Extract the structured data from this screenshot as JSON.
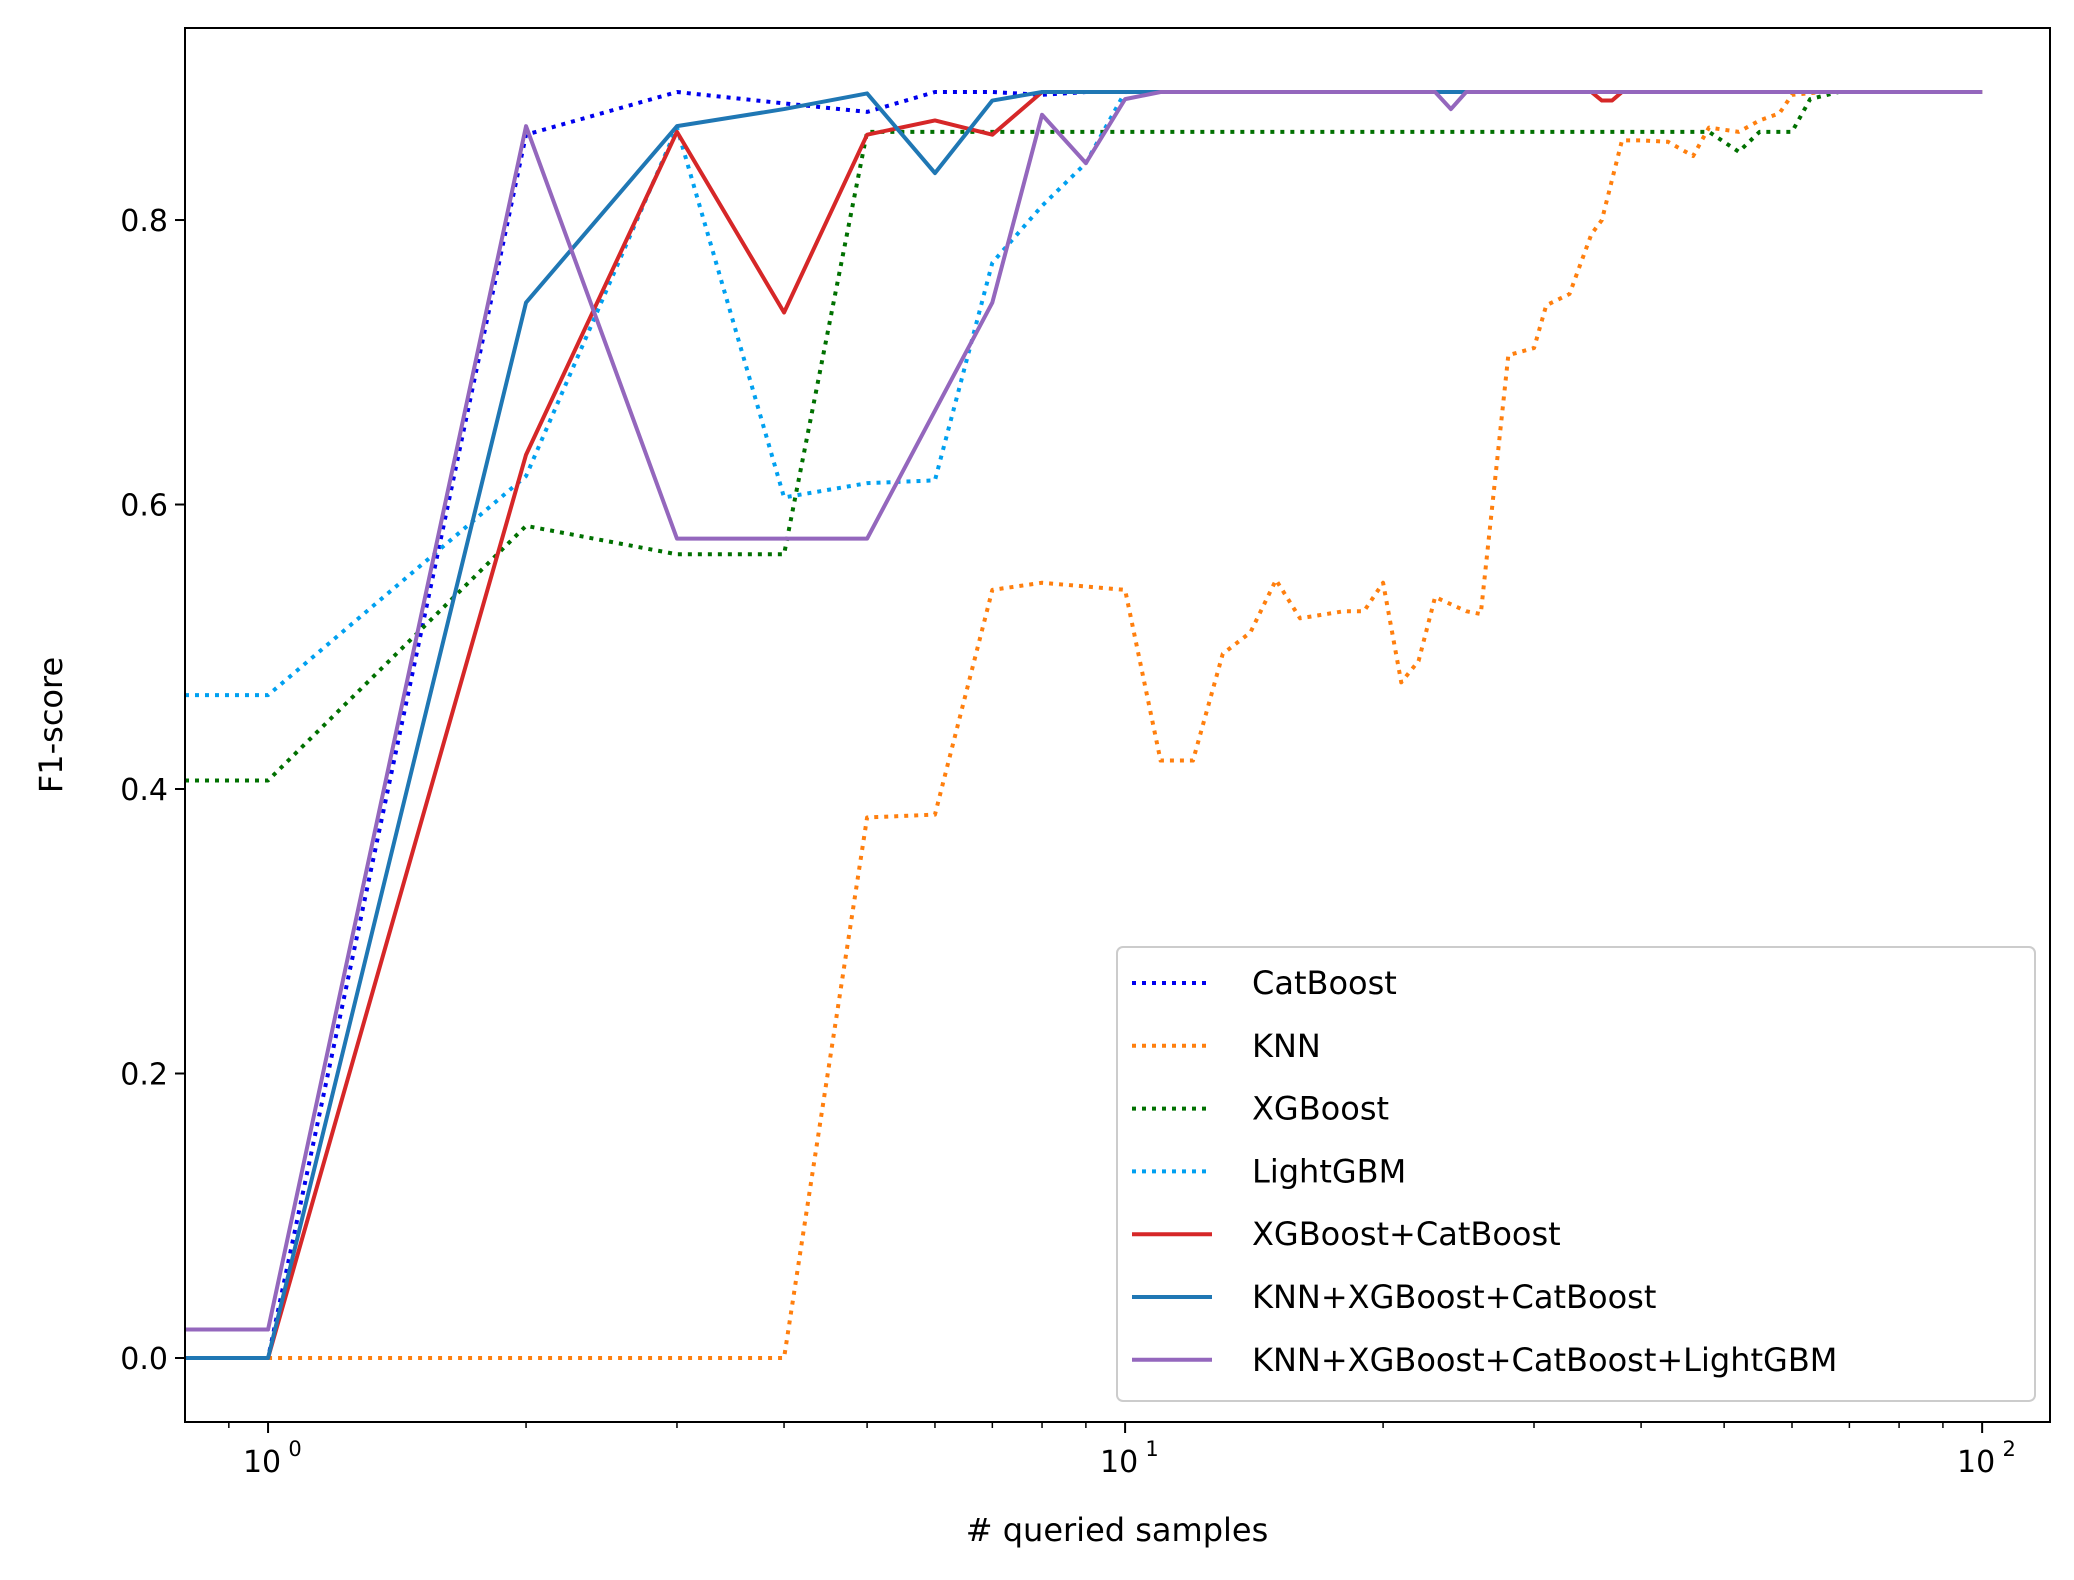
{
  "chart_data": {
    "type": "line",
    "title": "",
    "xlabel": "# queried samples",
    "ylabel": "F1-score",
    "xscale": "log",
    "xlim": [
      0.8,
      120
    ],
    "ylim": [
      -0.045,
      0.935
    ],
    "grid": false,
    "legend_position": "lower-right",
    "x_ticks": [
      {
        "value": 1,
        "base": "10",
        "exp": "0"
      },
      {
        "value": 10,
        "base": "10",
        "exp": "1"
      },
      {
        "value": 100,
        "base": "10",
        "exp": "2"
      }
    ],
    "y_ticks": [
      {
        "value": 0.0,
        "label": "0.0"
      },
      {
        "value": 0.2,
        "label": "0.2"
      },
      {
        "value": 0.4,
        "label": "0.4"
      },
      {
        "value": 0.6,
        "label": "0.6"
      },
      {
        "value": 0.8,
        "label": "0.8"
      }
    ],
    "series": [
      {
        "name": "CatBoost",
        "color": "#0000ee",
        "style": "dotted",
        "points": [
          [
            0.8,
            0.0
          ],
          [
            1,
            0.0
          ],
          [
            2,
            0.86
          ],
          [
            3,
            0.89
          ],
          [
            4,
            0.882
          ],
          [
            5,
            0.876
          ],
          [
            6,
            0.89
          ],
          [
            7,
            0.89
          ],
          [
            8,
            0.888
          ],
          [
            9,
            0.89
          ],
          [
            100,
            0.89
          ]
        ]
      },
      {
        "name": "KNN",
        "color": "#ff7f0e",
        "style": "dotted",
        "points": [
          [
            1,
            0.0
          ],
          [
            4,
            0.0
          ],
          [
            5,
            0.38
          ],
          [
            6,
            0.382
          ],
          [
            7,
            0.54
          ],
          [
            8,
            0.545
          ],
          [
            10,
            0.54
          ],
          [
            11,
            0.42
          ],
          [
            12,
            0.42
          ],
          [
            13,
            0.495
          ],
          [
            14,
            0.51
          ],
          [
            15,
            0.547
          ],
          [
            16,
            0.52
          ],
          [
            18,
            0.525
          ],
          [
            19,
            0.525
          ],
          [
            20,
            0.545
          ],
          [
            21,
            0.475
          ],
          [
            22,
            0.49
          ],
          [
            23,
            0.535
          ],
          [
            25,
            0.525
          ],
          [
            26,
            0.523
          ],
          [
            28,
            0.705
          ],
          [
            30,
            0.71
          ],
          [
            31,
            0.74
          ],
          [
            33,
            0.748
          ],
          [
            35,
            0.79
          ],
          [
            36,
            0.8
          ],
          [
            38,
            0.856
          ],
          [
            40,
            0.856
          ],
          [
            43,
            0.855
          ],
          [
            46,
            0.845
          ],
          [
            48,
            0.865
          ],
          [
            52,
            0.862
          ],
          [
            55,
            0.87
          ],
          [
            58,
            0.875
          ],
          [
            60,
            0.888
          ],
          [
            65,
            0.89
          ],
          [
            100,
            0.89
          ]
        ]
      },
      {
        "name": "XGBoost",
        "color": "#007000",
        "style": "dotted",
        "points": [
          [
            0.8,
            0.406
          ],
          [
            1,
            0.406
          ],
          [
            2,
            0.585
          ],
          [
            3,
            0.565
          ],
          [
            4,
            0.565
          ],
          [
            5,
            0.862
          ],
          [
            10,
            0.862
          ],
          [
            48,
            0.862
          ],
          [
            52,
            0.848
          ],
          [
            55,
            0.862
          ],
          [
            60,
            0.862
          ],
          [
            63,
            0.885
          ],
          [
            68,
            0.89
          ],
          [
            100,
            0.89
          ]
        ]
      },
      {
        "name": "LightGBM",
        "color": "#00a0f0",
        "style": "dotted",
        "points": [
          [
            0.8,
            0.466
          ],
          [
            1,
            0.466
          ],
          [
            2,
            0.62
          ],
          [
            3,
            0.865
          ],
          [
            4,
            0.605
          ],
          [
            5,
            0.615
          ],
          [
            6,
            0.617
          ],
          [
            7,
            0.77
          ],
          [
            8,
            0.81
          ],
          [
            9,
            0.84
          ],
          [
            10,
            0.89
          ],
          [
            100,
            0.89
          ]
        ]
      },
      {
        "name": "XGBoost+CatBoost",
        "color": "#d62728",
        "style": "solid",
        "points": [
          [
            0.8,
            0.0
          ],
          [
            1,
            0.0
          ],
          [
            2,
            0.635
          ],
          [
            3,
            0.862
          ],
          [
            4,
            0.735
          ],
          [
            5,
            0.86
          ],
          [
            6,
            0.87
          ],
          [
            7,
            0.86
          ],
          [
            8,
            0.89
          ],
          [
            35,
            0.89
          ],
          [
            36,
            0.884
          ],
          [
            37,
            0.884
          ],
          [
            38,
            0.89
          ],
          [
            100,
            0.89
          ]
        ]
      },
      {
        "name": "KNN+XGBoost+CatBoost",
        "color": "#1f77b4",
        "style": "solid",
        "points": [
          [
            0.8,
            0.0
          ],
          [
            1,
            0.0
          ],
          [
            2,
            0.742
          ],
          [
            3,
            0.866
          ],
          [
            4,
            0.878
          ],
          [
            5,
            0.889
          ],
          [
            6,
            0.833
          ],
          [
            7,
            0.884
          ],
          [
            8,
            0.89
          ],
          [
            100,
            0.89
          ]
        ]
      },
      {
        "name": "KNN+XGBoost+CatBoost+LightGBM",
        "color": "#9467bd",
        "style": "solid",
        "points": [
          [
            0.8,
            0.02
          ],
          [
            1,
            0.02
          ],
          [
            2,
            0.866
          ],
          [
            3,
            0.576
          ],
          [
            4,
            0.576
          ],
          [
            5,
            0.576
          ],
          [
            7,
            0.742
          ],
          [
            8,
            0.874
          ],
          [
            9,
            0.84
          ],
          [
            10,
            0.885
          ],
          [
            11,
            0.89
          ],
          [
            23,
            0.89
          ],
          [
            24,
            0.878
          ],
          [
            25,
            0.89
          ],
          [
            100,
            0.89
          ]
        ]
      }
    ]
  }
}
